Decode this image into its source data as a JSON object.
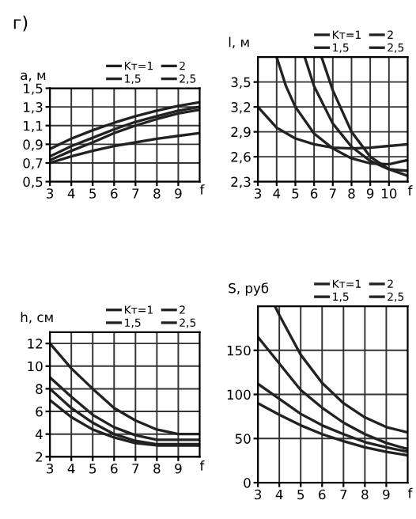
{
  "chart_data": [
    {
      "type": "line",
      "title": "г)",
      "legend": "top right",
      "xlabel": "f",
      "ylabel": "a, м",
      "xlim": [
        3,
        10
      ],
      "ylim": [
        0.5,
        1.5
      ],
      "xticks": [
        3,
        4,
        5,
        6,
        7,
        8,
        9
      ],
      "yticks": [
        {
          "value": 0.5,
          "label": "0,5"
        },
        {
          "value": 0.7,
          "label": "0,7"
        },
        {
          "value": 0.9,
          "label": "0,9"
        },
        {
          "value": 1.1,
          "label": "1,1"
        },
        {
          "value": 1.3,
          "label": "1,3"
        },
        {
          "value": 1.5,
          "label": "1,5"
        }
      ],
      "grid": true,
      "marker": "none",
      "line_style": "solid",
      "series": [
        {
          "name": "Kт=1",
          "color": "#222222",
          "x": [
            3,
            4,
            5,
            6,
            7,
            8,
            9,
            10
          ],
          "values": [
            0.85,
            0.96,
            1.05,
            1.13,
            1.2,
            1.26,
            1.31,
            1.35
          ]
        },
        {
          "name": "1,5",
          "color": "#222222",
          "x": [
            3,
            4,
            5,
            6,
            7,
            8,
            9,
            10
          ],
          "values": [
            0.77,
            0.88,
            0.97,
            1.06,
            1.14,
            1.2,
            1.26,
            1.3
          ]
        },
        {
          "name": "2",
          "color": "#222222",
          "x": [
            3,
            4,
            5,
            6,
            7,
            8,
            9,
            10
          ],
          "values": [
            0.73,
            0.83,
            0.92,
            1.02,
            1.1,
            1.17,
            1.23,
            1.27
          ]
        },
        {
          "name": "2,5",
          "color": "#222222",
          "x": [
            3,
            4,
            5,
            6,
            7,
            8,
            9,
            10
          ],
          "values": [
            0.7,
            0.77,
            0.83,
            0.88,
            0.92,
            0.96,
            0.99,
            1.02
          ]
        }
      ]
    },
    {
      "type": "line",
      "legend": "top right",
      "xlabel": "f",
      "ylabel": "l, м",
      "xlim": [
        3,
        11
      ],
      "ylim": [
        2.3,
        3.8
      ],
      "xticks": [
        3,
        4,
        5,
        6,
        7,
        8,
        9,
        10
      ],
      "yticks": [
        {
          "value": 2.3,
          "label": "2,3"
        },
        {
          "value": 2.6,
          "label": "2,6"
        },
        {
          "value": 2.9,
          "label": "2,9"
        },
        {
          "value": 3.2,
          "label": "3,2"
        },
        {
          "value": 3.5,
          "label": "3,5"
        }
      ],
      "grid": true,
      "marker": "none",
      "line_style": "solid",
      "series": [
        {
          "name": "Kт=1",
          "color": "#222222",
          "x": [
            3,
            4,
            5,
            6,
            7,
            8,
            9,
            10,
            11
          ],
          "values": [
            3.2,
            2.95,
            2.82,
            2.75,
            2.71,
            2.7,
            2.71,
            2.73,
            2.75
          ]
        },
        {
          "name": "1,5",
          "color": "#222222",
          "x": [
            4,
            4.5,
            5,
            6,
            7,
            8,
            9,
            10,
            11
          ],
          "values": [
            3.8,
            3.45,
            3.2,
            2.88,
            2.7,
            2.58,
            2.52,
            2.51,
            2.56
          ]
        },
        {
          "name": "2",
          "color": "#222222",
          "x": [
            5.5,
            6,
            7,
            8,
            9,
            10,
            11
          ],
          "values": [
            3.8,
            3.45,
            3.0,
            2.72,
            2.55,
            2.45,
            2.43
          ]
        },
        {
          "name": "2,5",
          "color": "#222222",
          "x": [
            6.4,
            7,
            8,
            9,
            10,
            11
          ],
          "values": [
            3.8,
            3.4,
            2.9,
            2.6,
            2.45,
            2.37
          ]
        }
      ]
    },
    {
      "type": "line",
      "legend": "top right",
      "xlabel": "f",
      "ylabel": "h, см",
      "xlim": [
        3,
        10
      ],
      "ylim": [
        2,
        13
      ],
      "xticks": [
        3,
        4,
        5,
        6,
        7,
        8,
        9
      ],
      "yticks": [
        2,
        4,
        6,
        8,
        10,
        12
      ],
      "grid": true,
      "marker": "none",
      "line_style": "solid",
      "series": [
        {
          "name": "Kт=1",
          "color": "#222222",
          "x": [
            3,
            4,
            5,
            6,
            7,
            8,
            9,
            10
          ],
          "values": [
            7,
            5.5,
            4.4,
            3.7,
            3.2,
            3.0,
            3.0,
            3.0
          ]
        },
        {
          "name": "1,5",
          "color": "#222222",
          "x": [
            3,
            4,
            5,
            6,
            7,
            8,
            9,
            10
          ],
          "values": [
            8,
            6.3,
            5.0,
            4.0,
            3.4,
            3.1,
            3.1,
            3.1
          ]
        },
        {
          "name": "2",
          "color": "#222222",
          "x": [
            3,
            4,
            5,
            6,
            7,
            8,
            9,
            10
          ],
          "values": [
            9,
            7.3,
            5.7,
            4.6,
            3.9,
            3.5,
            3.5,
            3.5
          ]
        },
        {
          "name": "2,5",
          "color": "#222222",
          "x": [
            3,
            4,
            5,
            6,
            7,
            8,
            9,
            10
          ],
          "values": [
            12,
            9.8,
            8,
            6.3,
            5.2,
            4.4,
            4.0,
            4.0
          ]
        }
      ]
    },
    {
      "type": "line",
      "legend": "top right",
      "xlabel": "f",
      "ylabel": "S, руб",
      "xlim": [
        3,
        10
      ],
      "ylim": [
        0,
        200
      ],
      "xticks": [
        3,
        4,
        5,
        6,
        7,
        8,
        9
      ],
      "yticks": [
        0,
        50,
        100,
        150
      ],
      "grid": true,
      "marker": "none",
      "line_style": "solid",
      "series": [
        {
          "name": "Kт=1",
          "color": "#222222",
          "x": [
            3,
            4,
            5,
            6,
            7,
            8,
            9,
            10
          ],
          "values": [
            90,
            77,
            65,
            55,
            47,
            40,
            35,
            31
          ]
        },
        {
          "name": "1,5",
          "color": "#222222",
          "x": [
            3,
            4,
            5,
            6,
            7,
            8,
            9,
            10
          ],
          "values": [
            112,
            95,
            78,
            65,
            55,
            46,
            40,
            35
          ]
        },
        {
          "name": "2",
          "color": "#222222",
          "x": [
            3,
            4,
            5,
            6,
            7,
            8,
            9,
            10
          ],
          "values": [
            165,
            135,
            105,
            85,
            68,
            55,
            45,
            38
          ]
        },
        {
          "name": "2,5",
          "color": "#222222",
          "x": [
            3.8,
            4,
            5,
            6,
            7,
            8,
            9,
            10
          ],
          "values": [
            200,
            190,
            145,
            113,
            90,
            74,
            63,
            57
          ]
        }
      ]
    }
  ]
}
